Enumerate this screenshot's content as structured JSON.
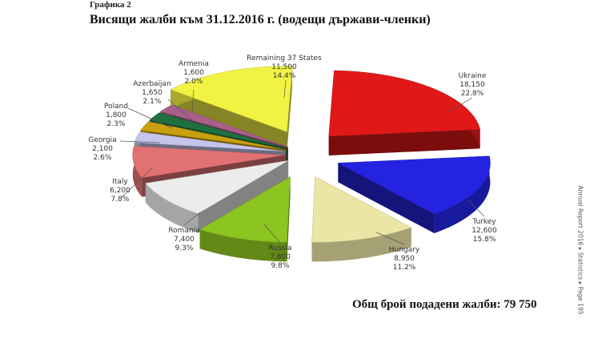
{
  "caption": "Графика 2",
  "title": "Висящи жалби към 31.12.2016 г. (водещи държави-членки)",
  "total": "Общ брой подадени жалби: 79 750",
  "side_text": "Annual Report 2016 ▸ Statistics ▸ Page 195",
  "chart_data": {
    "type": "pie",
    "style": "3d-exploded",
    "title": "Висящи жалби към 31.12.2016 г. (водещи държави-членки)",
    "legend": "none (callout labels)",
    "slices": [
      {
        "label": "Ukraine",
        "value": "18,150",
        "percent": "22.8%",
        "n": 18150,
        "color": "#e01818"
      },
      {
        "label": "Turkey",
        "value": "12,600",
        "percent": "15.8%",
        "n": 12600,
        "color": "#2424e0"
      },
      {
        "label": "Hungary",
        "value": "8,950",
        "percent": "11.2%",
        "n": 8950,
        "color": "#ebe6a6"
      },
      {
        "label": "Russia",
        "value": "7,800",
        "percent": "9.8%",
        "n": 7800,
        "color": "#8cc420"
      },
      {
        "label": "Romania",
        "value": "7,400",
        "percent": "9.3%",
        "n": 7400,
        "color": "#ececec"
      },
      {
        "label": "Italy",
        "value": "6,200",
        "percent": "7.8%",
        "n": 6200,
        "color": "#e27272"
      },
      {
        "label": "Georgia",
        "value": "2,100",
        "percent": "2.6%",
        "n": 2100,
        "color": "#c4c4ec"
      },
      {
        "label": "Poland",
        "value": "1,800",
        "percent": "2.3%",
        "n": 1800,
        "color": "#c8a010"
      },
      {
        "label": "Azerbaijan",
        "value": "1,650",
        "percent": "2.1%",
        "n": 1650,
        "color": "#1e7040"
      },
      {
        "label": "Armenia",
        "value": "1,600",
        "percent": "2.0%",
        "n": 1600,
        "color": "#a86088"
      },
      {
        "label": "Remaining 37 States",
        "value": "11,500",
        "percent": "14.4%",
        "n": 11500,
        "color": "#f2f244"
      }
    ]
  }
}
